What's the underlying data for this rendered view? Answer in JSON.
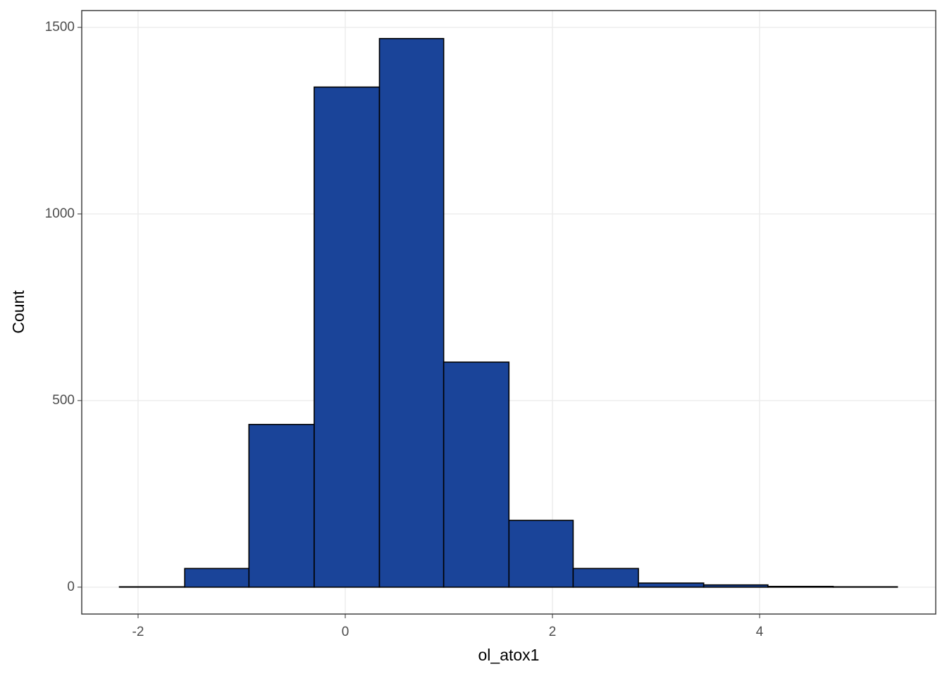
{
  "chart_data": {
    "type": "histogram",
    "x_label": "ol_atox1",
    "y_label": "Count",
    "bins": [
      -2.18,
      -1.55,
      -0.93,
      -0.3,
      0.33,
      0.95,
      1.58,
      2.2,
      2.83,
      3.46,
      4.08,
      4.71,
      5.33
    ],
    "values": [
      1,
      50,
      436,
      1340,
      1470,
      603,
      179,
      50,
      11,
      6,
      2,
      1
    ],
    "color": "#1a4499",
    "xlim": [
      -2.544,
      5.7
    ],
    "xticks": [
      -2,
      0,
      2,
      4
    ],
    "ylim": [
      -72,
      1545
    ],
    "yticks": [
      0,
      500,
      1000,
      1500
    ],
    "grid": true
  }
}
